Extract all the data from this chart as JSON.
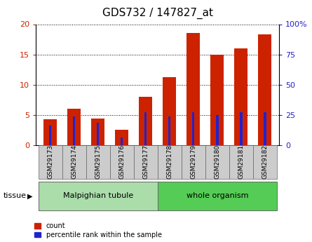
{
  "title": "GDS732 / 147827_at",
  "samples": [
    "GSM29173",
    "GSM29174",
    "GSM29175",
    "GSM29176",
    "GSM29177",
    "GSM29178",
    "GSM29179",
    "GSM29180",
    "GSM29181",
    "GSM29182"
  ],
  "count_values": [
    4.3,
    6.0,
    4.4,
    2.6,
    8.0,
    11.3,
    18.5,
    15.0,
    16.0,
    18.3
  ],
  "percentile_values": [
    16.0,
    23.5,
    18.5,
    6.5,
    27.0,
    24.0,
    27.5,
    25.0,
    27.0,
    27.5
  ],
  "tissue_groups": [
    {
      "label": "Malpighian tubule",
      "start": 0,
      "end": 5,
      "color": "#aaddaa"
    },
    {
      "label": "whole organism",
      "start": 5,
      "end": 10,
      "color": "#55cc55"
    }
  ],
  "ylim_left": [
    0,
    20
  ],
  "ylim_right": [
    0,
    100
  ],
  "yticks_left": [
    0,
    5,
    10,
    15,
    20
  ],
  "yticks_right": [
    0,
    25,
    50,
    75,
    100
  ],
  "bar_color_count": "#cc2200",
  "bar_color_pct": "#2222cc",
  "bar_width": 0.55,
  "pct_bar_width": 0.1,
  "grid_color": "black",
  "legend_count_label": "count",
  "legend_pct_label": "percentile rank within the sample",
  "tissue_label": "tissue",
  "bg_xtick": "#cccccc",
  "title_fontsize": 11,
  "tick_fontsize": 8,
  "label_fontsize": 7
}
